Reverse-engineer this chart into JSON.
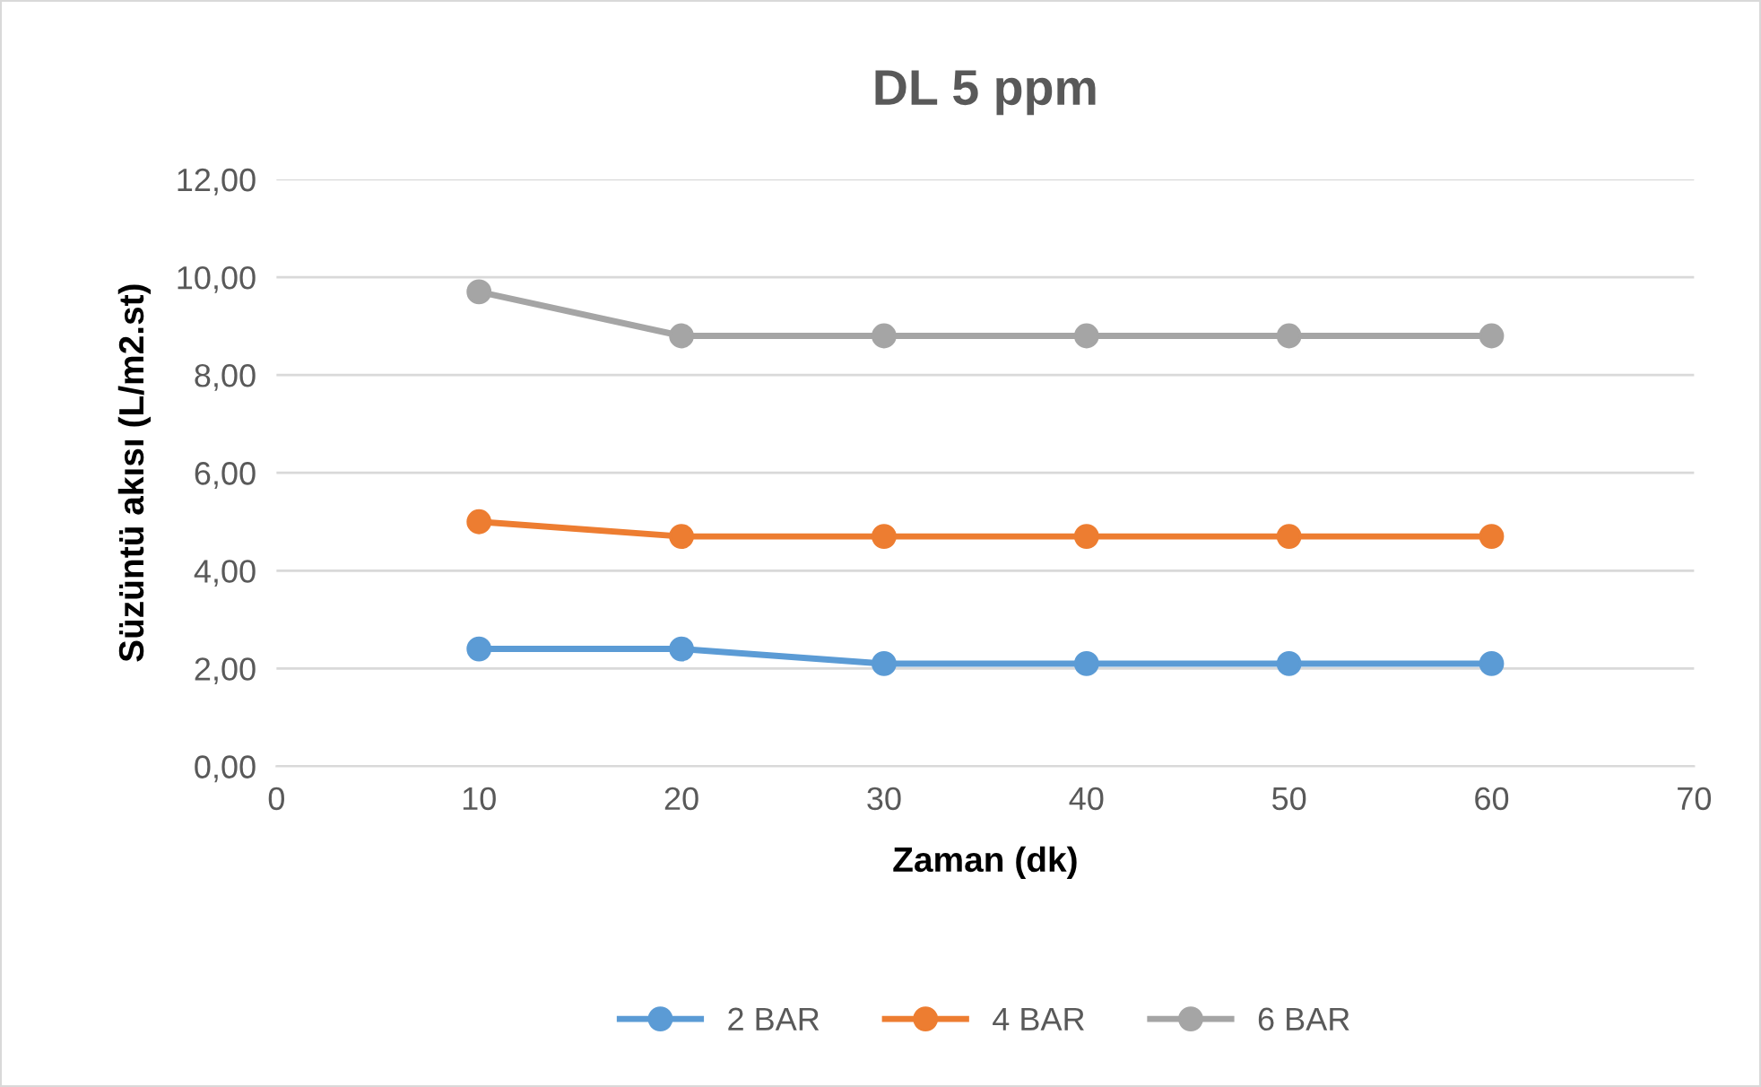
{
  "chart_data": {
    "type": "line",
    "title": "DL 5 ppm",
    "xlabel": "Zaman (dk)",
    "ylabel": "Süzüntü akısı (L/m2.st)",
    "x": [
      10,
      20,
      30,
      40,
      50,
      60
    ],
    "series": [
      {
        "name": "2 BAR",
        "color": "#5b9bd5",
        "values": [
          2.4,
          2.4,
          2.1,
          2.1,
          2.1,
          2.1
        ]
      },
      {
        "name": "4 BAR",
        "color": "#ed7d31",
        "values": [
          5.0,
          4.7,
          4.7,
          4.7,
          4.7,
          4.7
        ]
      },
      {
        "name": "6 BAR",
        "color": "#a5a5a5",
        "values": [
          9.7,
          8.8,
          8.8,
          8.8,
          8.8,
          8.8
        ]
      }
    ],
    "xlim": [
      0,
      70
    ],
    "xticks": [
      0,
      10,
      20,
      30,
      40,
      50,
      60,
      70
    ],
    "ylim": [
      0,
      12
    ],
    "yticks": [
      {
        "value": 0,
        "label": "0,00"
      },
      {
        "value": 2,
        "label": "2,00"
      },
      {
        "value": 4,
        "label": "4,00"
      },
      {
        "value": 6,
        "label": "6,00"
      },
      {
        "value": 8,
        "label": "8,00"
      },
      {
        "value": 10,
        "label": "10,00"
      },
      {
        "value": 12,
        "label": "12,00"
      }
    ],
    "grid": "y",
    "legend": "bottom",
    "marker": "circle",
    "line_style": "solid"
  }
}
